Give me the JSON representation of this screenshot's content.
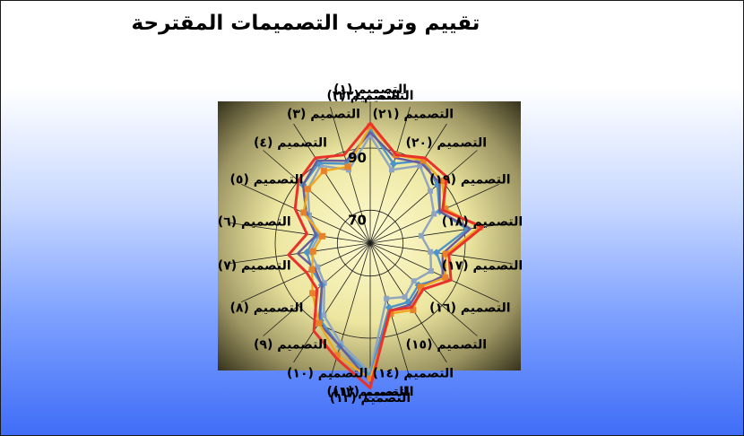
{
  "slide": {
    "title": "تقييم وترتيب التصميمات المقترحة"
  },
  "colors": {
    "background_top": "#ffffff",
    "background_bottom": "#3f6df7",
    "plot_center": "#fffbd0",
    "plot_edge": "#2d2a16",
    "series": [
      "#e8322a",
      "#f0a81f",
      "#6a5a9c",
      "#4d94c8",
      "#8fa4c0"
    ]
  },
  "chart_data": {
    "type": "radar",
    "title": "تقييم وترتيب التصميمات المقترحة",
    "categories": [
      "التصميم (١)",
      "التصميم (٢٢)",
      "التصميم (٢١)",
      "التصميم (٢٠)",
      "التصميم (١٩)",
      "التصميم (١٨)",
      "التصميم (١٧)",
      "التصميم (١٦)",
      "التصميم (١٥)",
      "التصميم (١٤)",
      "التصميم (١٣)",
      "التصميم (١٢)",
      "التصميم (١١)",
      "التصميم (١٠)",
      "التصميم (٩)",
      "التصميم (٨)",
      "التصميم (٧)",
      "التصميم (٦)",
      "التصميم (٥)",
      "التصميم (٤)",
      "التصميم (٣)",
      "التصميم (٢)"
    ],
    "scale_labels": [
      {
        "value": 70,
        "text": "70"
      },
      {
        "value": 90,
        "text": "90"
      }
    ],
    "rlim": [
      60,
      105
    ],
    "series": [
      {
        "values": [
          98,
          89,
          92,
          92,
          85,
          96,
          85,
          88,
          82,
          84,
          82,
          106,
          98,
          93,
          82,
          82,
          86,
          80,
          86,
          90,
          92,
          89
        ]
      },
      {
        "values": [
          97,
          89,
          91,
          90,
          86,
          95,
          84,
          86,
          81,
          85,
          83,
          103,
          97,
          90,
          84,
          80,
          78,
          75,
          83,
          86,
          87,
          85
        ]
      },
      {
        "values": [
          95,
          88,
          90,
          89,
          84,
          92,
          83,
          85,
          81,
          83,
          82,
          104,
          94,
          90,
          80,
          79,
          83,
          77,
          82,
          88,
          91,
          87
        ]
      },
      {
        "values": [
          96,
          86,
          91,
          88,
          84,
          91,
          81,
          86,
          80,
          82,
          81,
          102,
          94,
          89,
          80,
          80,
          80,
          77,
          82,
          88,
          90,
          86
        ]
      },
      {
        "values": [
          94,
          84,
          89,
          85,
          82,
          76,
          79,
          81,
          78,
          80,
          78,
          101,
          93,
          87,
          79,
          78,
          79,
          76,
          81,
          86,
          89,
          84
        ]
      }
    ],
    "grid": true,
    "legend": "none"
  }
}
